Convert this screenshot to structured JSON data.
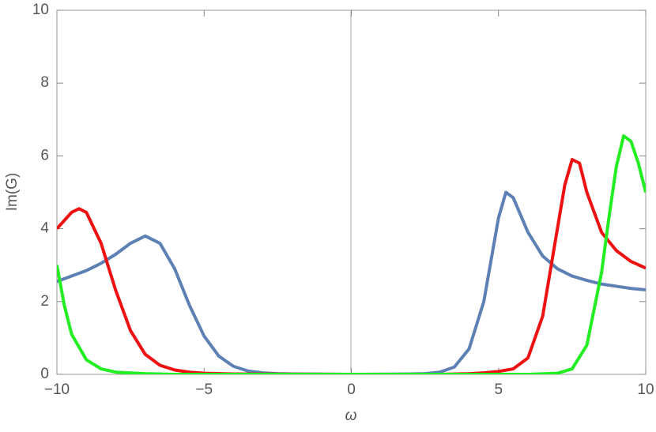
{
  "chart_data": {
    "type": "line",
    "xlabel": "ω",
    "ylabel": "Im(G)",
    "xlim": [
      -10,
      10
    ],
    "ylim": [
      0,
      10
    ],
    "xticks": [
      {
        "value": -10,
        "label": "−10"
      },
      {
        "value": -5,
        "label": "−5"
      },
      0,
      5,
      10
    ],
    "yticks": [
      0,
      2,
      4,
      6,
      8,
      10
    ],
    "grid": false,
    "series": [
      {
        "color": "#5e81b5",
        "x": [
          -10,
          -9.5,
          -9,
          -8.5,
          -8,
          -7.5,
          -7,
          -6.5,
          -6,
          -5.5,
          -5,
          -4.5,
          -4,
          -3.5,
          -3,
          -2.5,
          -2,
          0,
          2,
          2.5,
          3,
          3.5,
          4,
          4.5,
          5,
          5.25,
          5.5,
          6,
          6.5,
          7,
          7.5,
          8,
          8.5,
          9,
          9.5,
          10
        ],
        "values": [
          2.55,
          2.7,
          2.85,
          3.05,
          3.3,
          3.6,
          3.8,
          3.6,
          2.9,
          1.9,
          1.05,
          0.5,
          0.22,
          0.09,
          0.04,
          0.02,
          0.01,
          0,
          0.01,
          0.02,
          0.06,
          0.2,
          0.7,
          2.0,
          4.3,
          5.0,
          4.85,
          3.9,
          3.25,
          2.9,
          2.7,
          2.58,
          2.48,
          2.42,
          2.36,
          2.32
        ]
      },
      {
        "color": "#ee1111",
        "x": [
          -10,
          -9.5,
          -9.25,
          -9,
          -8.5,
          -8,
          -7.5,
          -7,
          -6.5,
          -6,
          -5.5,
          -5,
          -4,
          0,
          3,
          4,
          4.5,
          5,
          5.5,
          6,
          6.5,
          7,
          7.25,
          7.5,
          7.75,
          8,
          8.5,
          9,
          9.5,
          10
        ],
        "values": [
          4.0,
          4.45,
          4.55,
          4.45,
          3.6,
          2.3,
          1.2,
          0.55,
          0.25,
          0.12,
          0.06,
          0.03,
          0.01,
          0,
          0,
          0.02,
          0.04,
          0.08,
          0.15,
          0.45,
          1.6,
          4.0,
          5.2,
          5.9,
          5.8,
          5.0,
          3.9,
          3.4,
          3.1,
          2.92
        ]
      },
      {
        "color": "#22ee22",
        "x": [
          -10,
          -9.75,
          -9.5,
          -9,
          -8.5,
          -8,
          -7,
          -6,
          0,
          6,
          7,
          7.5,
          8,
          8.5,
          8.75,
          9,
          9.25,
          9.5,
          9.75,
          10
        ],
        "values": [
          3.0,
          1.9,
          1.1,
          0.4,
          0.15,
          0.06,
          0.02,
          0,
          0,
          0,
          0.03,
          0.15,
          0.8,
          2.8,
          4.3,
          5.7,
          6.55,
          6.4,
          5.8,
          5.0
        ]
      }
    ]
  }
}
